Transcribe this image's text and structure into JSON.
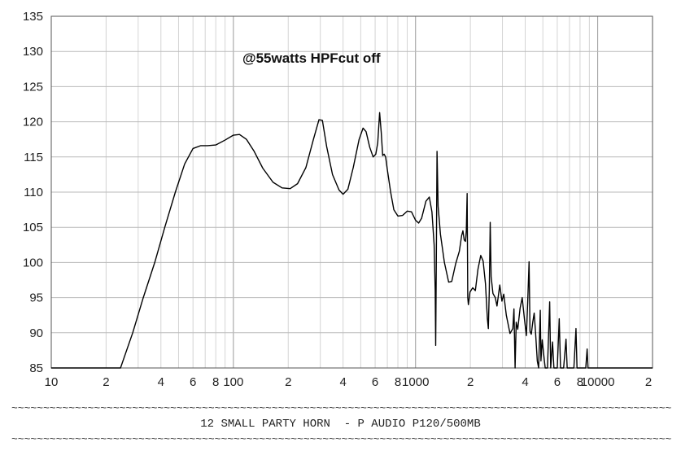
{
  "chart_data": {
    "type": "line",
    "title": "",
    "annotation": "@55watts HPFcut off",
    "caption": "12 SMALL PARTY HORN  - P AUDIO P120/500MB",
    "separator": "~~~~~~~~~~~~~~~~~~~~~~~~~~~~~~~~~~~~~~~~~~~~~~~~~~~~~~~~~~~~~~~~~~~~~~~~~~~~~~~~~~~~~~~~~~~~~~~~~~~~~~~~~~~~~~~~~~~~~~~~~~~~~~~~~~~~~",
    "x_scale": "log",
    "xlim": [
      10,
      20000
    ],
    "ylim": [
      85,
      135
    ],
    "grid": true,
    "y_ticks": [
      "135",
      "130",
      "125",
      "120",
      "115",
      "110",
      "105",
      "100",
      "95",
      "90",
      "85"
    ],
    "x_ticks": [
      {
        "value": 10,
        "label": "10"
      },
      {
        "value": 20,
        "label": "2"
      },
      {
        "value": 40,
        "label": "4"
      },
      {
        "value": 60,
        "label": "6"
      },
      {
        "value": 80,
        "label": "8"
      },
      {
        "value": 100,
        "label": "100"
      },
      {
        "value": 200,
        "label": "2"
      },
      {
        "value": 400,
        "label": "4"
      },
      {
        "value": 600,
        "label": "6"
      },
      {
        "value": 800,
        "label": "8"
      },
      {
        "value": 1000,
        "label": "1000"
      },
      {
        "value": 2000,
        "label": "2"
      },
      {
        "value": 4000,
        "label": "4"
      },
      {
        "value": 6000,
        "label": "6"
      },
      {
        "value": 8000,
        "label": "8"
      },
      {
        "value": 10000,
        "label": "10000"
      },
      {
        "value": 20000,
        "label": "2"
      }
    ],
    "series": [
      {
        "color": "#000000",
        "points": [
          [
            10,
            85
          ],
          [
            24,
            85
          ],
          [
            28,
            90
          ],
          [
            32,
            95
          ],
          [
            37,
            100
          ],
          [
            42,
            105
          ],
          [
            48,
            110
          ],
          [
            54,
            114
          ],
          [
            60,
            116.2
          ],
          [
            66,
            116.6
          ],
          [
            72,
            116.6
          ],
          [
            80,
            116.7
          ],
          [
            90,
            117.4
          ],
          [
            100,
            118.1
          ],
          [
            108,
            118.2
          ],
          [
            118,
            117.5
          ],
          [
            130,
            115.8
          ],
          [
            145,
            113.4
          ],
          [
            165,
            111.4
          ],
          [
            185,
            110.6
          ],
          [
            205,
            110.5
          ],
          [
            225,
            111.2
          ],
          [
            250,
            113.5
          ],
          [
            275,
            117.5
          ],
          [
            295,
            120.3
          ],
          [
            308,
            120.2
          ],
          [
            325,
            116.5
          ],
          [
            350,
            112.5
          ],
          [
            380,
            110.3
          ],
          [
            400,
            109.7
          ],
          [
            425,
            110.4
          ],
          [
            455,
            113.5
          ],
          [
            490,
            117.5
          ],
          [
            515,
            119.1
          ],
          [
            535,
            118.6
          ],
          [
            560,
            116.4
          ],
          [
            585,
            115.0
          ],
          [
            605,
            115.4
          ],
          [
            620,
            117.0
          ],
          [
            635,
            121.3
          ],
          [
            648,
            118.5
          ],
          [
            660,
            115.2
          ],
          [
            672,
            115.4
          ],
          [
            685,
            115.0
          ],
          [
            700,
            113.2
          ],
          [
            730,
            110.0
          ],
          [
            760,
            107.5
          ],
          [
            800,
            106.6
          ],
          [
            850,
            106.7
          ],
          [
            900,
            107.3
          ],
          [
            950,
            107.2
          ],
          [
            1000,
            106.0
          ],
          [
            1040,
            105.6
          ],
          [
            1080,
            106.3
          ],
          [
            1140,
            108.7
          ],
          [
            1190,
            109.3
          ],
          [
            1230,
            107.2
          ],
          [
            1265,
            102.5
          ],
          [
            1282,
            96.0
          ],
          [
            1290,
            88.2
          ],
          [
            1300,
            100.0
          ],
          [
            1312,
            115.8
          ],
          [
            1330,
            108.0
          ],
          [
            1370,
            104.0
          ],
          [
            1440,
            100.0
          ],
          [
            1520,
            97.2
          ],
          [
            1580,
            97.3
          ],
          [
            1660,
            99.8
          ],
          [
            1740,
            101.6
          ],
          [
            1790,
            103.8
          ],
          [
            1820,
            104.5
          ],
          [
            1850,
            103.2
          ],
          [
            1880,
            103.0
          ],
          [
            1900,
            104.5
          ],
          [
            1920,
            109.8
          ],
          [
            1935,
            95.0
          ],
          [
            1950,
            94.0
          ],
          [
            1990,
            95.8
          ],
          [
            2060,
            96.4
          ],
          [
            2130,
            96.0
          ],
          [
            2200,
            99.0
          ],
          [
            2280,
            101.0
          ],
          [
            2350,
            100.2
          ],
          [
            2420,
            97.0
          ],
          [
            2480,
            92.0
          ],
          [
            2510,
            90.6
          ],
          [
            2540,
            96.0
          ],
          [
            2570,
            105.7
          ],
          [
            2600,
            98.0
          ],
          [
            2660,
            95.6
          ],
          [
            2740,
            95.0
          ],
          [
            2800,
            93.8
          ],
          [
            2900,
            96.8
          ],
          [
            2980,
            94.5
          ],
          [
            3050,
            95.5
          ],
          [
            3150,
            92.5
          ],
          [
            3300,
            89.9
          ],
          [
            3420,
            90.6
          ],
          [
            3470,
            93.4
          ],
          [
            3520,
            85.0
          ],
          [
            3570,
            91.5
          ],
          [
            3640,
            90.5
          ],
          [
            3750,
            93.5
          ],
          [
            3850,
            95.0
          ],
          [
            3960,
            92.0
          ],
          [
            4060,
            89.6
          ],
          [
            4130,
            94.5
          ],
          [
            4200,
            100.1
          ],
          [
            4250,
            90.2
          ],
          [
            4320,
            89.8
          ],
          [
            4400,
            91.5
          ],
          [
            4480,
            92.8
          ],
          [
            4560,
            90.0
          ],
          [
            4660,
            86.0
          ],
          [
            4740,
            85.0
          ],
          [
            4840,
            93.2
          ],
          [
            4880,
            86.0
          ],
          [
            4960,
            89.0
          ],
          [
            5050,
            87.0
          ],
          [
            5150,
            85.0
          ],
          [
            5300,
            85.0
          ],
          [
            5450,
            94.4
          ],
          [
            5520,
            85.0
          ],
          [
            5650,
            88.7
          ],
          [
            5750,
            85.0
          ],
          [
            6000,
            85.0
          ],
          [
            6150,
            92.0
          ],
          [
            6250,
            85.0
          ],
          [
            6500,
            85.0
          ],
          [
            6700,
            89.1
          ],
          [
            6800,
            85.0
          ],
          [
            7400,
            85.0
          ],
          [
            7600,
            90.6
          ],
          [
            7700,
            85.0
          ],
          [
            8600,
            85.0
          ],
          [
            8750,
            87.7
          ],
          [
            8850,
            85.0
          ],
          [
            20000,
            85.0
          ]
        ]
      }
    ]
  }
}
